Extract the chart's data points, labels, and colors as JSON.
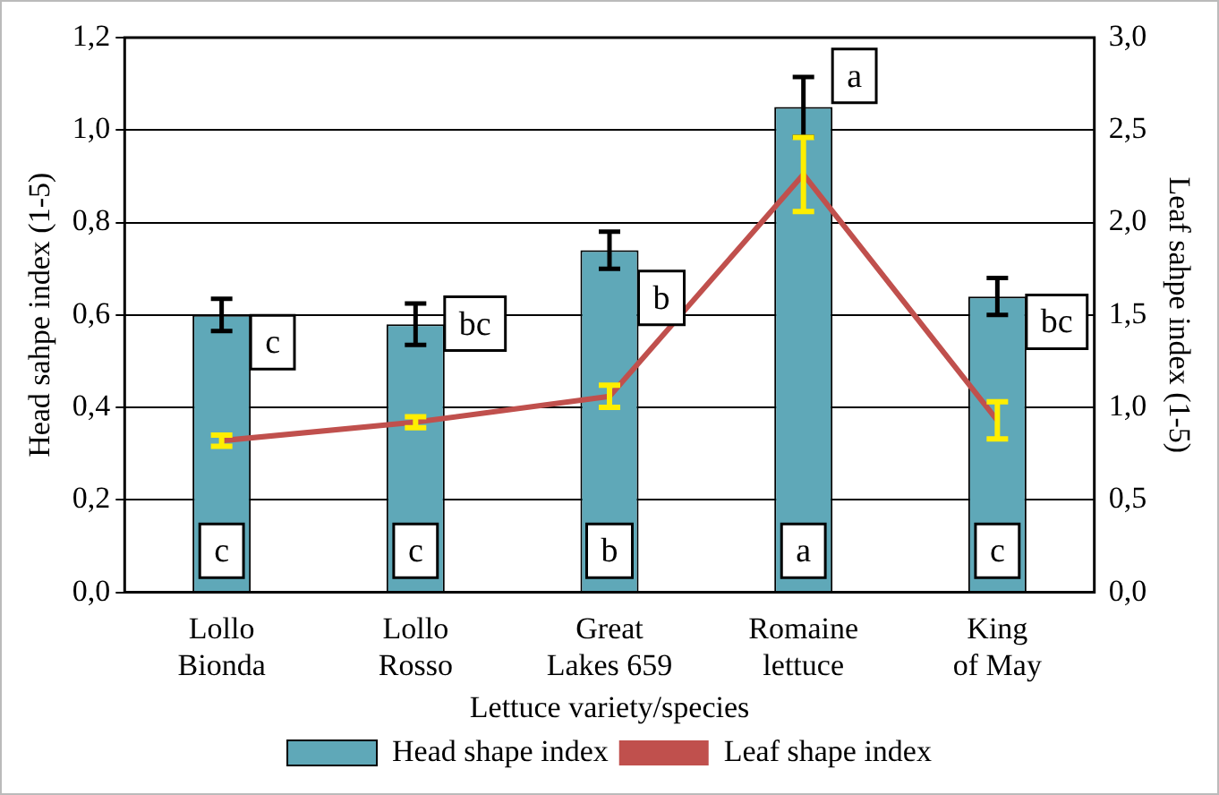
{
  "chart_data": {
    "type": "bar",
    "xlabel": "Lettuce variety/species",
    "ylabel": "Head sahpe index (1-5)",
    "y2label": "Leaf sahpe index (1-5)",
    "categories": [
      "Lollo Bionda",
      "Lollo Rosso",
      "Great Lakes 659",
      "Romaine lettuce",
      "King of May"
    ],
    "series": [
      {
        "name": "Head shape index",
        "color": "#5fa8b8",
        "values": [
          0.6,
          0.58,
          0.74,
          1.05,
          0.64
        ],
        "errors": [
          0.035,
          0.045,
          0.04,
          0.065,
          0.04
        ]
      },
      {
        "name": "Leaf shape index",
        "type": "line",
        "axis": "y2",
        "color": "#c0504d",
        "values": [
          0.82,
          0.92,
          1.06,
          2.26,
          0.93
        ],
        "errors": [
          0.03,
          0.03,
          0.06,
          0.2,
          0.1
        ]
      }
    ],
    "ylim": [
      0,
      1.2
    ],
    "yticks": [
      {
        "value": 0,
        "label": "0,0"
      },
      {
        "value": 0.2,
        "label": "0,2"
      },
      {
        "value": 0.4,
        "label": "0,4"
      },
      {
        "value": 0.6,
        "label": "0,6"
      },
      {
        "value": 0.8,
        "label": "0,8"
      },
      {
        "value": 1,
        "label": "1,0"
      },
      {
        "value": 1.2,
        "label": "1,2"
      }
    ],
    "y2lim": [
      0,
      3
    ],
    "y2ticks": [
      {
        "value": 0,
        "label": "0,0"
      },
      {
        "value": 0.5,
        "label": "0,5"
      },
      {
        "value": 1,
        "label": "1,0"
      },
      {
        "value": 1.5,
        "label": "1,5"
      },
      {
        "value": 2,
        "label": "2,0"
      },
      {
        "value": 2.5,
        "label": "2,5"
      },
      {
        "value": 3,
        "label": "3,0"
      }
    ],
    "annotations": [
      {
        "text": "c",
        "x": "Lollo Bionda",
        "y": 0.09
      },
      {
        "text": "c",
        "x": "Lollo Rosso",
        "y": 0.09
      },
      {
        "text": "b",
        "x": "Great Lakes 659",
        "y": 0.09
      },
      {
        "text": "a",
        "x": "Romaine lettuce",
        "y": 0.09
      },
      {
        "text": "c",
        "x": "King of May",
        "y": 0.09
      },
      "c",
      "bc",
      "b",
      "a",
      "bc"
    ],
    "grid": "y",
    "legend": "bottom",
    "marker": "none",
    "line_style": "solid"
  }
}
